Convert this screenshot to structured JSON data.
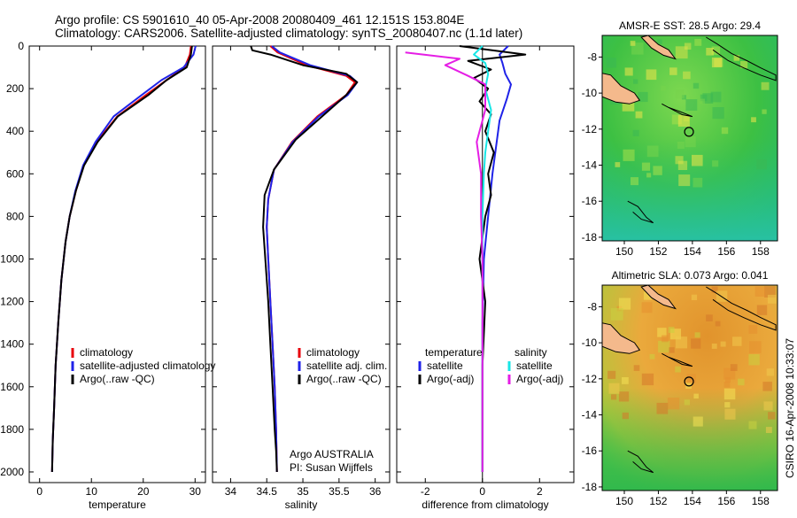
{
  "header": {
    "title_line1": "Argo profile: CS 5901610_40 05-Apr-2008 20080409_461 12.151S 153.804E",
    "title_line2": "Climatology: CARS2006. Satellite-adjusted climatology: synTS_20080407.nc (1.1d later)"
  },
  "side_label": "CSIRO 16-Apr-2008 10:33:07",
  "colors": {
    "red": "#e8000b",
    "blue": "#1f22e8",
    "black": "#000000",
    "cyan": "#18e6e6",
    "magenta": "#e51ee5"
  },
  "chart_data": [
    {
      "id": "temperature",
      "type": "line",
      "xlabel": "temperature",
      "xlim": [
        -2,
        32
      ],
      "ylim": [
        2050,
        0
      ],
      "xticks": [
        0,
        10,
        20,
        30
      ],
      "yticks": [
        0,
        200,
        400,
        600,
        800,
        1000,
        1200,
        1400,
        1600,
        1800,
        2000
      ],
      "legend": [
        "climatology",
        "satellite-adjusted climatology",
        "Argo(..raw -QC)"
      ],
      "series": [
        {
          "name": "climatology",
          "color": "red",
          "x": [
            29.2,
            29.0,
            28.0,
            24.5,
            20.5,
            15.0,
            11.0,
            8.5,
            7.0,
            5.8,
            5.0,
            4.2,
            3.6,
            3.1,
            2.8,
            2.55,
            2.4
          ],
          "y": [
            0,
            40,
            100,
            160,
            230,
            330,
            450,
            560,
            680,
            800,
            920,
            1100,
            1300,
            1500,
            1700,
            1850,
            2000
          ]
        },
        {
          "name": "satellite-adjusted climatology",
          "color": "blue",
          "x": [
            30.1,
            29.7,
            27.8,
            23.5,
            19.7,
            14.3,
            10.8,
            8.4,
            6.9,
            5.8,
            5.0,
            4.2,
            3.6,
            3.1,
            2.8,
            2.55,
            2.4
          ],
          "y": [
            0,
            40,
            100,
            160,
            230,
            330,
            450,
            560,
            680,
            800,
            920,
            1100,
            1300,
            1500,
            1700,
            1850,
            2000
          ]
        },
        {
          "name": "Argo(..raw -QC)",
          "color": "black",
          "x": [
            29.4,
            29.2,
            28.4,
            24.5,
            21.0,
            15.1,
            11.2,
            8.6,
            7.0,
            5.8,
            5.0,
            4.2,
            3.6,
            3.1,
            2.8,
            2.55,
            2.4
          ],
          "y": [
            0,
            40,
            100,
            160,
            230,
            330,
            450,
            560,
            680,
            800,
            920,
            1100,
            1300,
            1500,
            1700,
            1850,
            2000
          ]
        }
      ]
    },
    {
      "id": "salinity",
      "type": "line",
      "xlabel": "salinity",
      "xlim": [
        33.75,
        36.2
      ],
      "ylim": [
        2050,
        0
      ],
      "xticks": [
        34,
        34.5,
        35,
        35.5,
        36
      ],
      "legend": [
        "climatology",
        "satellite adj. clim.",
        "Argo(..raw -QC)"
      ],
      "annotation": [
        "Argo AUSTRALIA",
        "PI: Susan Wijffels"
      ],
      "series": [
        {
          "name": "climatology",
          "color": "red",
          "x": [
            34.55,
            34.65,
            35.05,
            35.6,
            35.72,
            35.6,
            35.2,
            34.85,
            34.6,
            34.52,
            34.5,
            34.52,
            34.55,
            34.58,
            34.61,
            34.63,
            34.64
          ],
          "y": [
            0,
            30,
            90,
            140,
            170,
            230,
            330,
            450,
            580,
            720,
            850,
            1000,
            1200,
            1400,
            1600,
            1800,
            2000
          ]
        },
        {
          "name": "satellite adj. clim.",
          "color": "blue",
          "x": [
            34.57,
            34.68,
            35.1,
            35.65,
            35.75,
            35.62,
            35.22,
            34.86,
            34.6,
            34.52,
            34.5,
            34.52,
            34.55,
            34.58,
            34.61,
            34.63,
            34.64
          ],
          "y": [
            0,
            30,
            90,
            140,
            170,
            230,
            330,
            450,
            580,
            720,
            850,
            1000,
            1200,
            1400,
            1600,
            1800,
            2000
          ]
        },
        {
          "name": "Argo(..raw -QC)",
          "color": "black",
          "x": [
            34.28,
            34.3,
            34.55,
            35.0,
            35.6,
            35.75,
            35.6,
            35.3,
            34.9,
            34.6,
            34.47,
            34.45,
            34.48,
            34.52,
            34.55,
            34.58,
            34.61,
            34.63,
            34.64
          ],
          "y": [
            0,
            20,
            40,
            90,
            130,
            170,
            230,
            320,
            440,
            580,
            700,
            850,
            1000,
            1200,
            1400,
            1600,
            1800,
            1900,
            2000
          ]
        }
      ]
    },
    {
      "id": "difference",
      "type": "line",
      "xlabel": "difference from climatology",
      "xlim": [
        -3,
        3.2
      ],
      "ylim": [
        2050,
        0
      ],
      "xticks": [
        -2,
        0,
        2
      ],
      "legend": [
        "temperature",
        "satellite",
        "Argo(-adj)",
        "salinity",
        "satellite",
        "Argo(-adj)"
      ],
      "series": [
        {
          "name": "temperature satellite",
          "color": "blue",
          "x": [
            0.9,
            0.6,
            0.7,
            0.8,
            1.0,
            0.85,
            0.6,
            0.5,
            0.35,
            0.2,
            0.05,
            0,
            0,
            0
          ],
          "y": [
            0,
            40,
            80,
            130,
            180,
            250,
            350,
            450,
            600,
            800,
            1000,
            1300,
            1600,
            2000
          ]
        },
        {
          "name": "temperature Argo(-adj)",
          "color": "black",
          "x": [
            -0.8,
            1.5,
            -0.5,
            0.3,
            -0.3,
            0.2,
            -0.1,
            0.3,
            0.1,
            0.4,
            0.2,
            0.3,
            0.1,
            -0.1,
            0.1,
            0,
            0,
            0
          ],
          "y": [
            0,
            40,
            70,
            110,
            150,
            200,
            260,
            320,
            400,
            500,
            600,
            700,
            800,
            1000,
            1200,
            1500,
            1800,
            2000
          ]
        },
        {
          "name": "salinity satellite",
          "color": "cyan",
          "x": [
            0,
            -0.3,
            0.1,
            0.2,
            0.1,
            0.3,
            0.2,
            0.1,
            0.05,
            0,
            0,
            0
          ],
          "y": [
            0,
            40,
            80,
            130,
            200,
            300,
            400,
            500,
            600,
            800,
            1200,
            2000
          ]
        },
        {
          "name": "salinity Argo(-adj)",
          "color": "magenta",
          "x": [
            -2.7,
            -0.8,
            -1.3,
            -0.5,
            0.1,
            0.1,
            -0.2,
            -0.05,
            -0.05,
            0,
            0,
            0
          ],
          "y": [
            30,
            60,
            90,
            140,
            180,
            300,
            450,
            600,
            800,
            1000,
            1400,
            2000
          ]
        }
      ]
    },
    {
      "id": "sst_map",
      "type": "heatmap",
      "title": "AMSR-E SST: 28.5 Argo: 29.4",
      "xticks": [
        150,
        152,
        154,
        156,
        158
      ],
      "yticks": [
        -8,
        -10,
        -12,
        -14,
        -16,
        -18
      ],
      "xlim": [
        148.7,
        159
      ],
      "ylim": [
        -18.2,
        -6.8
      ],
      "marker": {
        "lon": 153.8,
        "lat": -12.15
      }
    },
    {
      "id": "sla_map",
      "type": "heatmap",
      "title": "Altimetric SLA: 0.073 Argo: 0.041",
      "xticks": [
        150,
        152,
        154,
        156,
        158
      ],
      "yticks": [
        -8,
        -10,
        -12,
        -14,
        -16,
        -18
      ],
      "xlim": [
        148.7,
        159
      ],
      "ylim": [
        -18.2,
        -6.8
      ],
      "marker": {
        "lon": 153.8,
        "lat": -12.15
      }
    }
  ]
}
